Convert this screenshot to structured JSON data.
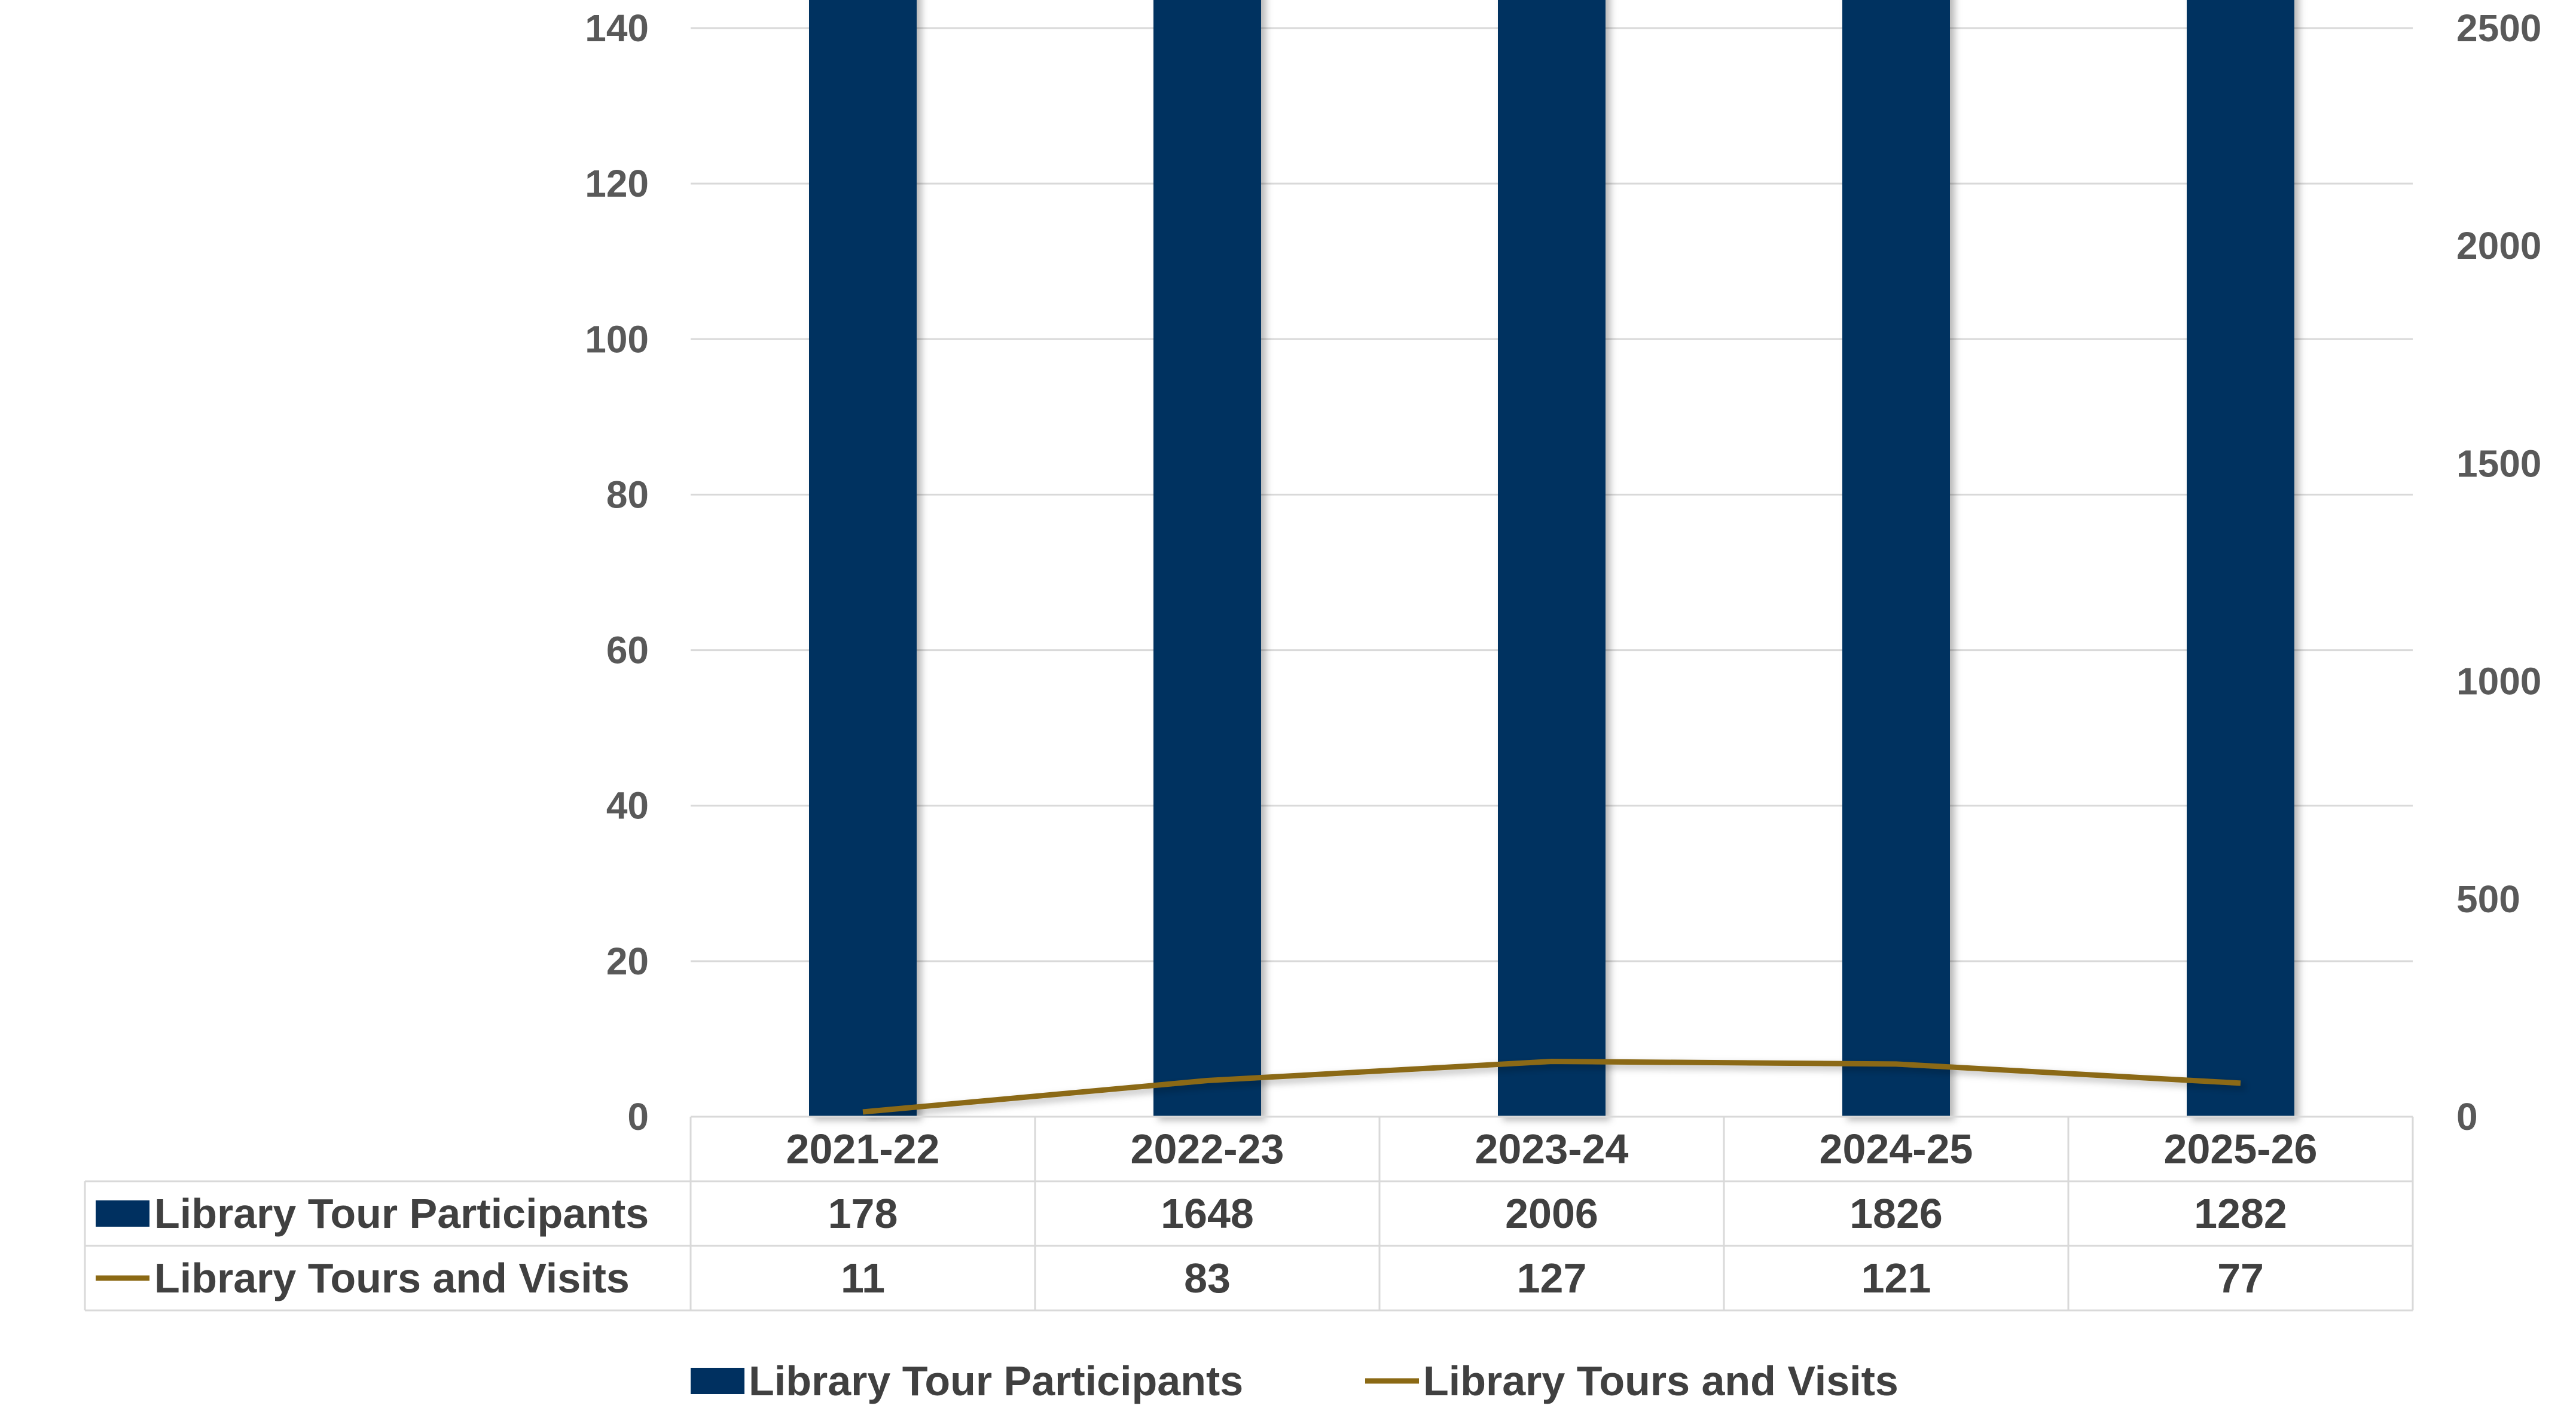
{
  "chart_data": {
    "type": "bar",
    "categories": [
      "2021-22",
      "2022-23",
      "2023-24",
      "2024-25",
      "2025-26"
    ],
    "series": [
      {
        "name": "Library Tour Participants",
        "kind": "bar",
        "axis": "left",
        "color": "#003060",
        "values": [
          178,
          1648,
          2006,
          1826,
          1282
        ]
      },
      {
        "name": "Library Tours and Visits",
        "kind": "line",
        "axis": "right",
        "color": "#8B6914",
        "values": [
          11,
          83,
          127,
          121,
          77
        ]
      }
    ],
    "left_axis": {
      "min": 0,
      "max": 140,
      "ticks": [
        0,
        20,
        40,
        60,
        80,
        100,
        120,
        140
      ]
    },
    "right_axis": {
      "min": 0,
      "max": 2500,
      "ticks": [
        0,
        500,
        1000,
        1500,
        2000,
        2500
      ]
    },
    "grid": true,
    "data_table": true,
    "legend": {
      "position": "bottom",
      "labels": [
        "Library Tour Participants",
        "Library Tours and Visits"
      ]
    }
  }
}
